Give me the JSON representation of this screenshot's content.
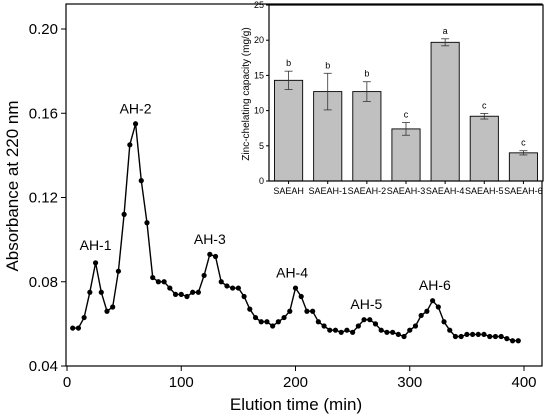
{
  "chart_data": [
    {
      "type": "line",
      "xlabel": "Elution time (min)",
      "ylabel": "Absorbance at 220 nm",
      "xlim": [
        0,
        400
      ],
      "ylim": [
        0.04,
        0.2
      ],
      "x_ticks": [
        0,
        100,
        200,
        300,
        400
      ],
      "y_ticks": [
        0.04,
        0.08,
        0.12,
        0.16,
        0.2
      ],
      "x_tick_labels": [
        "0",
        "100",
        "200",
        "300",
        "400"
      ],
      "y_tick_labels": [
        "0.04",
        "0.08",
        "0.12",
        "0.16",
        "0.20"
      ],
      "x": [
        5,
        10,
        15,
        20,
        25,
        30,
        35,
        40,
        45,
        50,
        55,
        60,
        65,
        70,
        75,
        80,
        85,
        90,
        95,
        100,
        105,
        110,
        115,
        120,
        125,
        130,
        135,
        140,
        145,
        150,
        155,
        160,
        165,
        170,
        175,
        180,
        185,
        190,
        195,
        200,
        205,
        210,
        215,
        220,
        225,
        230,
        235,
        240,
        245,
        250,
        255,
        260,
        265,
        270,
        275,
        280,
        285,
        290,
        295,
        300,
        305,
        310,
        315,
        320,
        325,
        330,
        335,
        340,
        345,
        350,
        355,
        360,
        365,
        370,
        375,
        380,
        385,
        390,
        395
      ],
      "y": [
        0.058,
        0.058,
        0.063,
        0.075,
        0.089,
        0.075,
        0.066,
        0.068,
        0.085,
        0.112,
        0.145,
        0.155,
        0.128,
        0.108,
        0.082,
        0.08,
        0.08,
        0.077,
        0.074,
        0.074,
        0.073,
        0.075,
        0.075,
        0.083,
        0.093,
        0.092,
        0.08,
        0.078,
        0.077,
        0.077,
        0.073,
        0.067,
        0.063,
        0.061,
        0.061,
        0.059,
        0.061,
        0.063,
        0.066,
        0.077,
        0.073,
        0.066,
        0.066,
        0.061,
        0.059,
        0.057,
        0.057,
        0.056,
        0.057,
        0.056,
        0.059,
        0.062,
        0.062,
        0.06,
        0.057,
        0.056,
        0.056,
        0.055,
        0.054,
        0.057,
        0.059,
        0.064,
        0.066,
        0.071,
        0.068,
        0.061,
        0.057,
        0.054,
        0.054,
        0.055,
        0.055,
        0.055,
        0.055,
        0.054,
        0.054,
        0.054,
        0.053,
        0.052,
        0.052
      ],
      "annotations": [
        {
          "text": "AH-1",
          "x": 25,
          "y": 0.095
        },
        {
          "text": "AH-2",
          "x": 60,
          "y": 0.16
        },
        {
          "text": "AH-3",
          "x": 125,
          "y": 0.098
        },
        {
          "text": "AH-4",
          "x": 197,
          "y": 0.082
        },
        {
          "text": "AH-5",
          "x": 262,
          "y": 0.067
        },
        {
          "text": "AH-6",
          "x": 322,
          "y": 0.076
        }
      ]
    },
    {
      "type": "bar",
      "ylabel": "Zinc-chelating capacity (mg/g)",
      "ylim": [
        0,
        25
      ],
      "y_ticks": [
        0,
        5,
        10,
        15,
        20,
        25
      ],
      "y_tick_labels": [
        "0",
        "5",
        "10",
        "15",
        "20",
        "25"
      ],
      "categories": [
        "SAEAH",
        "SAEAH-1",
        "SAEAH-2",
        "SAEAH-3",
        "SAEAH-4",
        "SAEAH-5",
        "SAEAH-6"
      ],
      "values": [
        14.3,
        12.7,
        12.7,
        7.4,
        19.7,
        9.2,
        4.0
      ],
      "errors": [
        1.3,
        2.6,
        1.4,
        0.9,
        0.5,
        0.4,
        0.3
      ],
      "letters": [
        "b",
        "b",
        "b",
        "c",
        "a",
        "c",
        "c"
      ]
    }
  ]
}
